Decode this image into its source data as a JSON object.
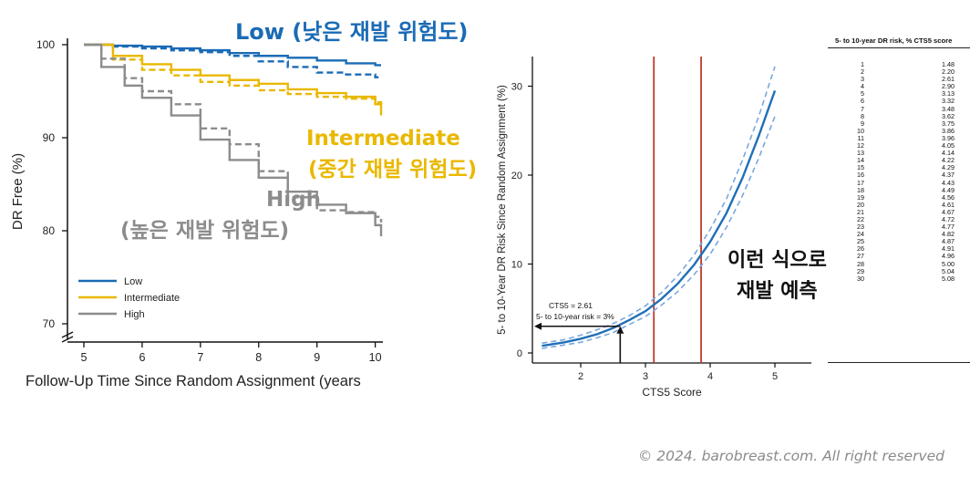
{
  "annotations": {
    "low": "Low (낮은 재발 위험도)",
    "intermediate_1": "Intermediate",
    "intermediate_2": "(중간 재발 위험도)",
    "high_1": "High",
    "high_2": "(높은 재발 위험도)",
    "predict_1": "이런 식으로",
    "predict_2": "재발 예측"
  },
  "colors": {
    "low": "#1a6bb5",
    "intermediate": "#e9b800",
    "high": "#8c8c8c",
    "cts5_line": "#1f6fb8",
    "cts5_ci": "#7aa7dc",
    "vertical_ref": "#c0392b"
  },
  "copyright": "© 2024. barobreast.com. All right reserved",
  "chart_data": [
    {
      "type": "line",
      "ylabel": "DR Free (%)",
      "xlabel": "Follow-Up Time Since Random Assignment (years",
      "xlim": [
        5,
        10.1
      ],
      "ylim": [
        70,
        100
      ],
      "x_ticks": [
        5,
        6,
        7,
        8,
        9,
        10
      ],
      "y_ticks": [
        70,
        80,
        90,
        100
      ],
      "grid": false,
      "legend_position": "bottom-left",
      "legend": [
        "Low",
        "Intermediate",
        "High"
      ],
      "series": [
        {
          "name": "Low",
          "style": "solid",
          "x": [
            5,
            5.5,
            6,
            6.5,
            7,
            7.5,
            8,
            8.5,
            9,
            9.5,
            10,
            10.1
          ],
          "y": [
            100,
            99.9,
            99.8,
            99.6,
            99.4,
            99.1,
            98.8,
            98.6,
            98.3,
            98.0,
            97.8,
            97.8
          ]
        },
        {
          "name": "Low",
          "style": "dashed",
          "x": [
            5,
            5.5,
            6,
            6.5,
            7,
            7.5,
            8,
            8.5,
            9,
            9.5,
            10,
            10.1
          ],
          "y": [
            100,
            99.8,
            99.6,
            99.4,
            99.2,
            98.8,
            98.2,
            97.6,
            97.0,
            96.8,
            96.5,
            96.4
          ]
        },
        {
          "name": "Intermediate",
          "style": "solid",
          "x": [
            5,
            5.5,
            6,
            6.5,
            7,
            7.5,
            8,
            8.5,
            9,
            9.5,
            10,
            10.1
          ],
          "y": [
            100,
            98.8,
            97.9,
            97.3,
            96.7,
            96.2,
            95.8,
            95.2,
            94.8,
            94.4,
            93.6,
            92.4
          ]
        },
        {
          "name": "Intermediate",
          "style": "dashed",
          "x": [
            5,
            5.5,
            6,
            6.5,
            7,
            7.5,
            8,
            8.5,
            9,
            9.5,
            10,
            10.1
          ],
          "y": [
            100,
            98.4,
            97.3,
            96.7,
            96.0,
            95.6,
            95.1,
            94.7,
            94.4,
            94.2,
            93.8,
            93.4
          ]
        },
        {
          "name": "High",
          "style": "solid",
          "x": [
            5,
            5.3,
            5.7,
            6,
            6.5,
            7,
            7.5,
            8,
            8.5,
            9,
            9.5,
            10,
            10.1
          ],
          "y": [
            100,
            97.6,
            95.6,
            94.3,
            92.4,
            89.8,
            87.6,
            85.7,
            84.2,
            82.8,
            81.9,
            80.6,
            79.4
          ]
        },
        {
          "name": "High",
          "style": "dashed",
          "x": [
            5,
            5.3,
            5.7,
            6,
            6.5,
            7,
            7.5,
            8,
            8.5,
            9,
            9.5,
            10,
            10.1
          ],
          "y": [
            100,
            98.5,
            96.4,
            95.0,
            93.6,
            91.0,
            89.3,
            86.4,
            83.6,
            82.2,
            82.0,
            81.5,
            80.9
          ]
        }
      ]
    },
    {
      "type": "line",
      "ylabel": "5- to 10-Year DR Risk Since Random Assignment (%)",
      "xlabel": "CTS5 Score",
      "xlim": [
        1.3,
        5.6
      ],
      "ylim": [
        -1,
        33
      ],
      "x_ticks": [
        2,
        3,
        4,
        5
      ],
      "y_ticks": [
        0,
        10,
        20,
        30
      ],
      "grid": false,
      "vertical_lines": [
        3.13,
        3.86
      ],
      "annotation": {
        "text_1": "CTS5 = 2.61",
        "text_2": "5- to 10-year risk = 3%",
        "x": 2.61,
        "y": 3
      },
      "series": [
        {
          "name": "",
          "style": "solid",
          "x": [
            1.4,
            1.75,
            2.0,
            2.25,
            2.5,
            2.75,
            3.0,
            3.25,
            3.5,
            3.75,
            4.0,
            4.25,
            4.5,
            4.75,
            5.0
          ],
          "y": [
            0.8,
            1.2,
            1.6,
            2.1,
            2.8,
            3.7,
            4.7,
            6.1,
            7.8,
            9.9,
            12.5,
            15.7,
            19.7,
            24.4,
            29.5
          ]
        },
        {
          "name": "",
          "style": "dashed",
          "x": [
            1.4,
            1.75,
            2.0,
            2.25,
            2.5,
            2.75,
            3.0,
            3.25,
            3.5,
            3.75,
            4.0,
            4.25,
            4.5,
            4.75,
            5.0
          ],
          "y": [
            1.1,
            1.5,
            2.0,
            2.6,
            3.3,
            4.2,
            5.3,
            6.8,
            8.7,
            11.0,
            13.9,
            17.3,
            21.7,
            26.6,
            32.2
          ]
        },
        {
          "name": "",
          "style": "dashed",
          "x": [
            1.4,
            1.75,
            2.0,
            2.25,
            2.5,
            2.75,
            3.0,
            3.25,
            3.5,
            3.75,
            4.0,
            4.25,
            4.5,
            4.75,
            5.0
          ],
          "y": [
            0.5,
            0.9,
            1.2,
            1.7,
            2.3,
            3.2,
            4.1,
            5.4,
            6.9,
            8.8,
            11.1,
            14.1,
            17.7,
            21.9,
            26.6
          ]
        }
      ]
    },
    {
      "type": "table",
      "header": "5- to 10-year DR risk, % CTS5 score",
      "rows": [
        [
          "1",
          "1.48"
        ],
        [
          "2",
          "2.20"
        ],
        [
          "3",
          "2.61"
        ],
        [
          "4",
          "2.90"
        ],
        [
          "5",
          "3.13"
        ],
        [
          "6",
          "3.32"
        ],
        [
          "7",
          "3.48"
        ],
        [
          "8",
          "3.62"
        ],
        [
          "9",
          "3.75"
        ],
        [
          "10",
          "3.86"
        ],
        [
          "11",
          "3.96"
        ],
        [
          "12",
          "4.05"
        ],
        [
          "13",
          "4.14"
        ],
        [
          "14",
          "4.22"
        ],
        [
          "15",
          "4.29"
        ],
        [
          "16",
          "4.37"
        ],
        [
          "17",
          "4.43"
        ],
        [
          "18",
          "4.49"
        ],
        [
          "19",
          "4.56"
        ],
        [
          "20",
          "4.61"
        ],
        [
          "21",
          "4.67"
        ],
        [
          "22",
          "4.72"
        ],
        [
          "23",
          "4.77"
        ],
        [
          "24",
          "4.82"
        ],
        [
          "25",
          "4.87"
        ],
        [
          "26",
          "4.91"
        ],
        [
          "27",
          "4.96"
        ],
        [
          "28",
          "5.00"
        ],
        [
          "29",
          "5.04"
        ],
        [
          "30",
          "5.08"
        ]
      ]
    }
  ]
}
